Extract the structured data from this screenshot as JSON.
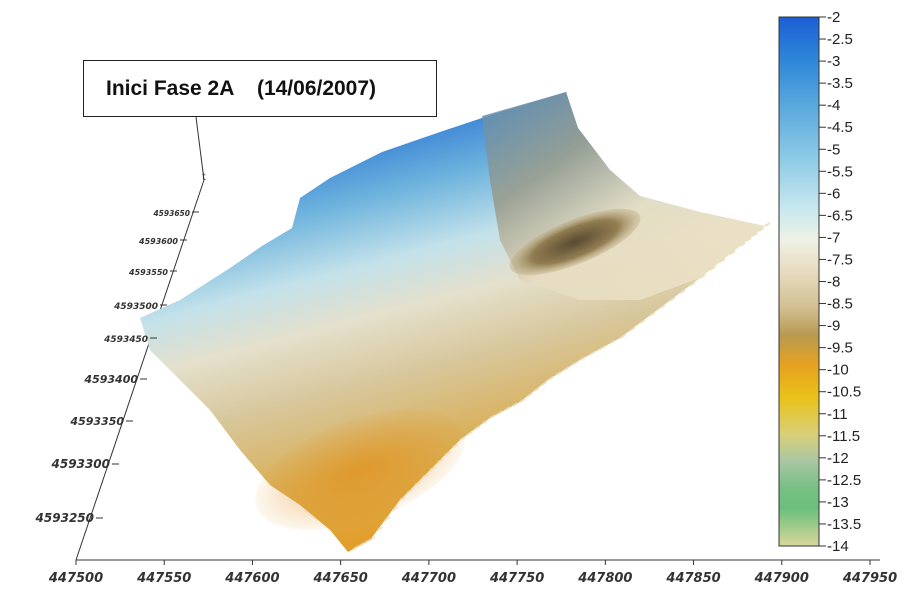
{
  "chart_data": {
    "type": "surface3d",
    "title": "Inici Fase 2A    (14/06/2007)",
    "x_axis": {
      "ticks": [
        "447500",
        "447550",
        "447600",
        "447650",
        "447700",
        "447750",
        "447800",
        "447850",
        "447900",
        "447950"
      ],
      "range": [
        447500,
        447950
      ]
    },
    "y_axis": {
      "ticks": [
        "4593250",
        "4593300",
        "4593350",
        "4593400",
        "4593450",
        "4593500",
        "4593550",
        "4593600",
        "4593650"
      ],
      "range": [
        4593250,
        4593650
      ]
    },
    "colorbar": {
      "range": [
        -14,
        -2
      ],
      "labels": [
        "-2",
        "-2.5",
        "-3",
        "-3.5",
        "-4",
        "-4.5",
        "-5",
        "-5.5",
        "-6",
        "-6.5",
        "-7",
        "-7.5",
        "-8",
        "-8.5",
        "-9",
        "-9.5",
        "-10",
        "-10.5",
        "-11",
        "-11.5",
        "-12",
        "-12.5",
        "-13",
        "-13.5",
        "-14"
      ],
      "colors": [
        "#1a5fd6",
        "#2e86d8",
        "#5aa9dd",
        "#8fcbe6",
        "#c6e7ef",
        "#eef2e6",
        "#e8dcc0",
        "#d2bf92",
        "#b89a52",
        "#e6a21e",
        "#e9c21a",
        "#d9cf7a",
        "#a8c7a3",
        "#78bf83",
        "#6dbf7e",
        "#d8d89a"
      ]
    },
    "surface_shading": {
      "low_region": "yellow-orange (-10 to -11)",
      "high_region": "blue (-2 to -4)",
      "trench": "dark brown (-8.5 to -9)"
    }
  }
}
